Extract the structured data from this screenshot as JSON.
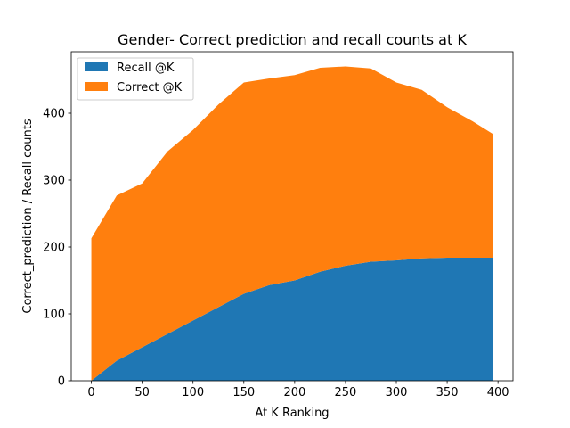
{
  "chart_data": {
    "type": "area",
    "stacked": true,
    "title": "Gender- Correct prediction and recall counts at K",
    "xlabel": "At K Ranking",
    "ylabel": "Correct_prediction / Recall counts",
    "xlim": [
      -19.75,
      414.75
    ],
    "ylim": [
      0,
      492
    ],
    "xticks": [
      0,
      50,
      100,
      150,
      200,
      250,
      300,
      350,
      400
    ],
    "yticks": [
      0,
      100,
      200,
      300,
      400
    ],
    "legend_position": "top-left",
    "x": [
      0,
      25,
      50,
      75,
      100,
      125,
      150,
      175,
      200,
      225,
      250,
      275,
      300,
      325,
      350,
      375,
      395
    ],
    "series": [
      {
        "name": "Recall @K",
        "color": "#1f77b4",
        "values": [
          0,
          30,
          50,
          70,
          90,
          110,
          130,
          143,
          150,
          163,
          172,
          178,
          180,
          183,
          184,
          184,
          184
        ]
      },
      {
        "name": "Correct @K",
        "color": "#ff7f0e",
        "values": [
          213,
          247,
          245,
          273,
          285,
          303,
          316,
          309,
          307,
          305,
          298,
          289,
          266,
          252,
          225,
          204,
          185
        ]
      }
    ]
  }
}
